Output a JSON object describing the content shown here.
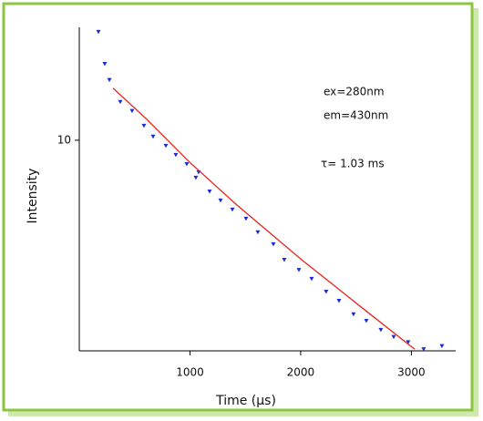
{
  "chart_data": {
    "type": "scatter",
    "log_y": true,
    "x_label": "Time (µs)",
    "y_label": "Intensity",
    "annotations": [
      "ex=280nm",
      "em=430nm",
      "τ=  1.03 ms"
    ],
    "xlim": [
      0,
      3400
    ],
    "ylim": [
      1.17,
      31.6
    ],
    "xticks": [
      1000,
      2000,
      3000
    ],
    "yticks": [
      10
    ],
    "series": [
      {
        "mode": "markers",
        "color": "#1a2bd6",
        "x": [
          173,
          230,
          272,
          370,
          477,
          584,
          667,
          782,
          872,
          971,
          1053,
          1078,
          1177,
          1276,
          1383,
          1506,
          1613,
          1753,
          1852,
          1984,
          2099,
          2230,
          2346,
          2477,
          2593,
          2724,
          2840,
          2971,
          3111,
          3276
        ],
        "values": [
          30.2,
          21.8,
          18.5,
          14.8,
          13.5,
          11.6,
          10.4,
          9.46,
          8.62,
          7.85,
          6.84,
          7.23,
          5.94,
          5.42,
          4.94,
          4.5,
          3.92,
          3.47,
          2.96,
          2.67,
          2.44,
          2.14,
          1.95,
          1.7,
          1.59,
          1.45,
          1.35,
          1.28,
          1.19,
          1.23
        ]
      },
      {
        "mode": "line",
        "color": "#e8241c",
        "x": [
          305,
          601,
          996,
          1424,
          2008,
          2576,
          3029
        ],
        "values": [
          17.0,
          12.5,
          8.0,
          5.17,
          2.96,
          1.78,
          1.19
        ]
      }
    ]
  }
}
